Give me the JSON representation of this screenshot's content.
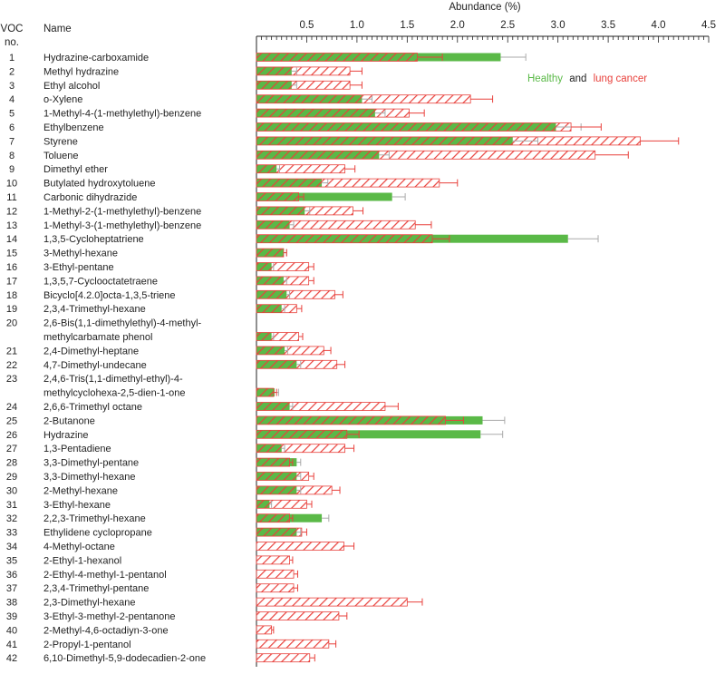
{
  "chart_data": {
    "type": "bar",
    "orientation": "horizontal",
    "xlabel": "Abundance (%)",
    "xlim": [
      0,
      4.5
    ],
    "xticks": [
      "0.5",
      "1.0",
      "1.5",
      "2.0",
      "2.5",
      "3.0",
      "3.5",
      "4.0",
      "4.5"
    ],
    "col_voc_header": [
      "VOC",
      "no."
    ],
    "col_name_header": "Name",
    "legend": {
      "healthy": "Healthy",
      "and": "and",
      "cancer": "lung cancer",
      "placement": "top-right"
    },
    "colors": {
      "healthy": "#5ab947",
      "cancer": "#e8413c",
      "error_healthy": "#aaaaaa"
    },
    "compounds": [
      {
        "no": "1",
        "name": [
          "Hydrazine-carboxamide"
        ],
        "healthy": 2.43,
        "healthy_err": 0.25,
        "cancer": 1.6,
        "cancer_err": 0.25
      },
      {
        "no": "2",
        "name": [
          "Methyl hydrazine"
        ],
        "healthy": 0.35,
        "healthy_err": 0.05,
        "cancer": 0.93,
        "cancer_err": 0.12
      },
      {
        "no": "3",
        "name": [
          "Ethyl alcohol"
        ],
        "healthy": 0.35,
        "healthy_err": 0.05,
        "cancer": 0.93,
        "cancer_err": 0.12
      },
      {
        "no": "4",
        "name": [
          "o-Xylene"
        ],
        "healthy": 1.05,
        "healthy_err": 0.1,
        "cancer": 2.13,
        "cancer_err": 0.22
      },
      {
        "no": "5",
        "name": [
          "1-Methyl-4-(1-methylethyl)-benzene"
        ],
        "healthy": 1.18,
        "healthy_err": 0.1,
        "cancer": 1.52,
        "cancer_err": 0.15
      },
      {
        "no": "6",
        "name": [
          "Ethylbenzene"
        ],
        "healthy": 2.98,
        "healthy_err": 0.25,
        "cancer": 3.13,
        "cancer_err": 0.3
      },
      {
        "no": "7",
        "name": [
          "Styrene"
        ],
        "healthy": 2.55,
        "healthy_err": 0.25,
        "cancer": 3.82,
        "cancer_err": 0.38
      },
      {
        "no": "8",
        "name": [
          "Toluene"
        ],
        "healthy": 1.22,
        "healthy_err": 0.1,
        "cancer": 3.37,
        "cancer_err": 0.33
      },
      {
        "no": "9",
        "name": [
          "Dimethyl ether"
        ],
        "healthy": 0.2,
        "healthy_err": 0.03,
        "cancer": 0.88,
        "cancer_err": 0.1
      },
      {
        "no": "10",
        "name": [
          "Butylated hydroxytoluene"
        ],
        "healthy": 0.65,
        "healthy_err": 0.06,
        "cancer": 1.82,
        "cancer_err": 0.18
      },
      {
        "no": "11",
        "name": [
          "Carbonic dihydrazide"
        ],
        "healthy": 1.35,
        "healthy_err": 0.13,
        "cancer": 0.42,
        "cancer_err": 0.05
      },
      {
        "no": "12",
        "name": [
          "1-Methyl-2-(1-methylethyl)-benzene"
        ],
        "healthy": 0.48,
        "healthy_err": 0.05,
        "cancer": 0.96,
        "cancer_err": 0.1
      },
      {
        "no": "13",
        "name": [
          "1-Methyl-3-(1-methylethyl)-benzene"
        ],
        "healthy": 0.33,
        "healthy_err": 0.04,
        "cancer": 1.58,
        "cancer_err": 0.16
      },
      {
        "no": "14",
        "name": [
          "1,3,5-Cycloheptatriene"
        ],
        "healthy": 3.1,
        "healthy_err": 0.3,
        "cancer": 1.75,
        "cancer_err": 0.17
      },
      {
        "no": "15",
        "name": [
          "3-Methyl-hexane"
        ],
        "healthy": 0.27,
        "healthy_err": 0.03,
        "cancer": 0.27,
        "cancer_err": 0.03
      },
      {
        "no": "16",
        "name": [
          "3-Ethyl-pentane"
        ],
        "healthy": 0.15,
        "healthy_err": 0.02,
        "cancer": 0.52,
        "cancer_err": 0.05
      },
      {
        "no": "17",
        "name": [
          "1,3,5,7-Cyclooctatetraene"
        ],
        "healthy": 0.27,
        "healthy_err": 0.03,
        "cancer": 0.52,
        "cancer_err": 0.05
      },
      {
        "no": "18",
        "name": [
          "Bicyclo[4.2.0]octa-1,3,5-triene"
        ],
        "healthy": 0.3,
        "healthy_err": 0.03,
        "cancer": 0.78,
        "cancer_err": 0.08
      },
      {
        "no": "19",
        "name": [
          "2,3,4-Trimethyl-hexane"
        ],
        "healthy": 0.25,
        "healthy_err": 0.03,
        "cancer": 0.4,
        "cancer_err": 0.05
      },
      {
        "no": "20",
        "name": [
          "2,6-Bis(1,1-dimethylethyl)-4-methyl-",
          "methylcarbamate phenol"
        ],
        "healthy": 0.15,
        "healthy_err": 0.02,
        "cancer": 0.42,
        "cancer_err": 0.04
      },
      {
        "no": "21",
        "name": [
          "2,4-Dimethyl-heptane"
        ],
        "healthy": 0.28,
        "healthy_err": 0.03,
        "cancer": 0.67,
        "cancer_err": 0.07
      },
      {
        "no": "22",
        "name": [
          "4,7-Dimethyl-undecane"
        ],
        "healthy": 0.4,
        "healthy_err": 0.04,
        "cancer": 0.8,
        "cancer_err": 0.08
      },
      {
        "no": "23",
        "name": [
          "2,4,6-Tris(1,1-dimethyl-ethyl)-4-",
          "methylcyclohexa-2,5-dien-1-one"
        ],
        "healthy": 0.18,
        "healthy_err": 0.04,
        "cancer": 0.17,
        "cancer_err": 0.03
      },
      {
        "no": "24",
        "name": [
          "2,6,6-Trimethyl octane"
        ],
        "healthy": 0.33,
        "healthy_err": 0.03,
        "cancer": 1.28,
        "cancer_err": 0.13
      },
      {
        "no": "25",
        "name": [
          "2-Butanone"
        ],
        "healthy": 2.25,
        "healthy_err": 0.22,
        "cancer": 1.88,
        "cancer_err": 0.18
      },
      {
        "no": "26",
        "name": [
          "Hydrazine"
        ],
        "healthy": 2.23,
        "healthy_err": 0.22,
        "cancer": 0.9,
        "cancer_err": 0.12
      },
      {
        "no": "27",
        "name": [
          "1,3-Pentadiene"
        ],
        "healthy": 0.25,
        "healthy_err": 0.03,
        "cancer": 0.88,
        "cancer_err": 0.09
      },
      {
        "no": "28",
        "name": [
          "3,3-Dimethyl-pentane"
        ],
        "healthy": 0.4,
        "healthy_err": 0.04,
        "cancer": 0.33,
        "cancer_err": 0.03
      },
      {
        "no": "29",
        "name": [
          "3,3-Dimethyl-hexane"
        ],
        "healthy": 0.4,
        "healthy_err": 0.04,
        "cancer": 0.52,
        "cancer_err": 0.05
      },
      {
        "no": "30",
        "name": [
          "2-Methyl-hexane"
        ],
        "healthy": 0.4,
        "healthy_err": 0.04,
        "cancer": 0.75,
        "cancer_err": 0.08
      },
      {
        "no": "31",
        "name": [
          "3-Ethyl-hexane"
        ],
        "healthy": 0.13,
        "healthy_err": 0.02,
        "cancer": 0.5,
        "cancer_err": 0.05
      },
      {
        "no": "32",
        "name": [
          "2,2,3-Trimethyl-hexane"
        ],
        "healthy": 0.65,
        "healthy_err": 0.07,
        "cancer": 0.33,
        "cancer_err": 0.03
      },
      {
        "no": "33",
        "name": [
          "Ethylidene cyclopropane"
        ],
        "healthy": 0.4,
        "healthy_err": 0.04,
        "cancer": 0.45,
        "cancer_err": 0.05
      },
      {
        "no": "34",
        "name": [
          "4-Methyl-octane"
        ],
        "healthy": 0,
        "healthy_err": 0,
        "cancer": 0.87,
        "cancer_err": 0.1
      },
      {
        "no": "35",
        "name": [
          "2-Ethyl-1-hexanol"
        ],
        "healthy": 0,
        "healthy_err": 0,
        "cancer": 0.33,
        "cancer_err": 0.03
      },
      {
        "no": "36",
        "name": [
          "2-Ethyl-4-methyl-1-pentanol"
        ],
        "healthy": 0,
        "healthy_err": 0,
        "cancer": 0.37,
        "cancer_err": 0.04
      },
      {
        "no": "37",
        "name": [
          "2,3,4-Trimethyl-pentane"
        ],
        "healthy": 0,
        "healthy_err": 0,
        "cancer": 0.37,
        "cancer_err": 0.04
      },
      {
        "no": "38",
        "name": [
          "2,3-Dimethyl-hexane"
        ],
        "healthy": 0,
        "healthy_err": 0,
        "cancer": 1.5,
        "cancer_err": 0.15
      },
      {
        "no": "39",
        "name": [
          "3-Ethyl-3-methyl-2-pentanone"
        ],
        "healthy": 0,
        "healthy_err": 0,
        "cancer": 0.82,
        "cancer_err": 0.08
      },
      {
        "no": "40",
        "name": [
          "2-Methyl-4,6-octadiyn-3-one"
        ],
        "healthy": 0,
        "healthy_err": 0,
        "cancer": 0.15,
        "cancer_err": 0.02
      },
      {
        "no": "41",
        "name": [
          "2-Propyl-1-pentanol"
        ],
        "healthy": 0,
        "healthy_err": 0,
        "cancer": 0.72,
        "cancer_err": 0.07
      },
      {
        "no": "42",
        "name": [
          "6,10-Dimethyl-5,9-dodecadien-2-one"
        ],
        "healthy": 0,
        "healthy_err": 0,
        "cancer": 0.53,
        "cancer_err": 0.05
      }
    ]
  }
}
